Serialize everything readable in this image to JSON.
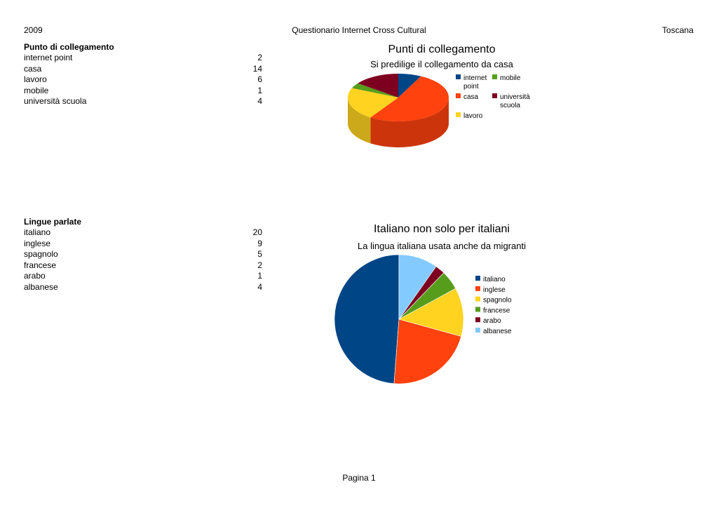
{
  "header": {
    "year": "2009",
    "title": "Questionario Internet Cross Cultural",
    "region": "Toscana"
  },
  "table1": {
    "title": "Punto di collegamento",
    "rows": [
      {
        "label": "internet point",
        "value": "2"
      },
      {
        "label": "casa",
        "value": "14"
      },
      {
        "label": "lavoro",
        "value": "6"
      },
      {
        "label": "mobile",
        "value": "1"
      },
      {
        "label": "università scuola",
        "value": "4"
      }
    ]
  },
  "table2": {
    "title": "Lingue parlate",
    "rows": [
      {
        "label": "italiano",
        "value": "20"
      },
      {
        "label": "inglese",
        "value": "9"
      },
      {
        "label": "spagnolo",
        "value": "5"
      },
      {
        "label": "francese",
        "value": "2"
      },
      {
        "label": "arabo",
        "value": "1"
      },
      {
        "label": "albanese",
        "value": "4"
      }
    ]
  },
  "chart_data": [
    {
      "type": "pie",
      "title": "Punti di collegamento",
      "subtitle": "Si predilige il collegamento da casa",
      "three_d": true,
      "legend": "right",
      "slices": [
        {
          "label": "internet point",
          "value": 2,
          "color": "#004586"
        },
        {
          "label": "casa",
          "value": 14,
          "color": "#ff420e"
        },
        {
          "label": "lavoro",
          "value": 6,
          "color": "#ffd320"
        },
        {
          "label": "mobile",
          "value": 1,
          "color": "#579d1c"
        },
        {
          "label": "università scuola",
          "value": 4,
          "color": "#7e0021"
        }
      ],
      "legend_items": [
        {
          "lines": [
            "internet",
            "point"
          ],
          "color": "#004586"
        },
        {
          "lines": [
            "mobile"
          ],
          "color": "#579d1c"
        },
        {
          "lines": [
            "casa"
          ],
          "color": "#ff420e"
        },
        {
          "lines": [
            "università",
            "scuola"
          ],
          "color": "#7e0021"
        },
        {
          "lines": [
            "lavoro"
          ],
          "color": "#ffd320"
        }
      ]
    },
    {
      "type": "pie",
      "title": "Italiano non solo per italiani",
      "subtitle": "La lingua italiana usata anche da migranti",
      "legend": "right",
      "slices": [
        {
          "label": "italiano",
          "value": 20,
          "color": "#004586"
        },
        {
          "label": "inglese",
          "value": 9,
          "color": "#ff420e"
        },
        {
          "label": "spagnolo",
          "value": 5,
          "color": "#ffd320"
        },
        {
          "label": "francese",
          "value": 2,
          "color": "#579d1c"
        },
        {
          "label": "arabo",
          "value": 1,
          "color": "#7e0021"
        },
        {
          "label": "albanese",
          "value": 4,
          "color": "#83caff"
        }
      ]
    }
  ],
  "footer": {
    "page": "Pagina 1"
  }
}
